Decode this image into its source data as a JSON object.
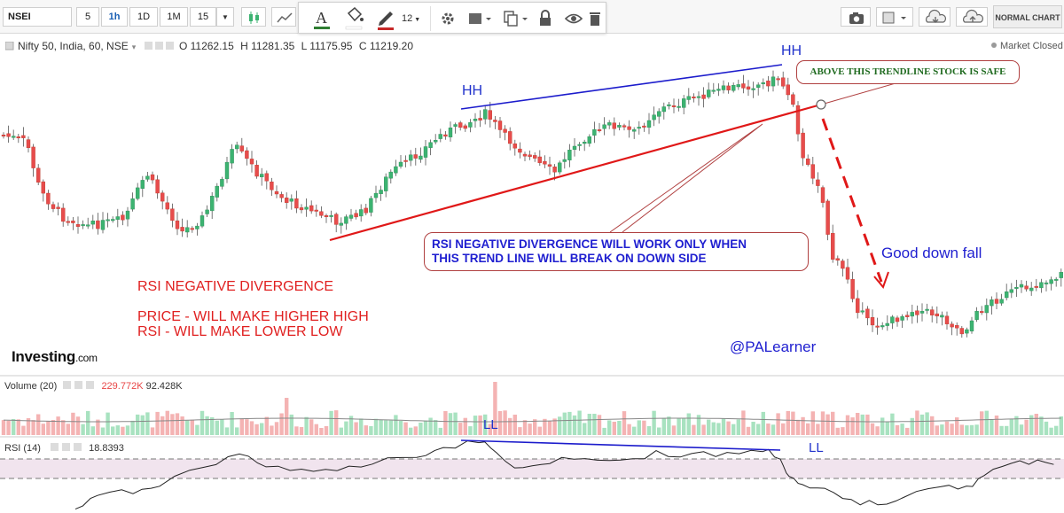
{
  "toolbar": {
    "symbol": "NSEI",
    "timeframes": [
      "5",
      "1h",
      "1D",
      "1M",
      "15"
    ],
    "active_timeframe": "1h",
    "font_size": "12",
    "normal_chart_label": "NORMAL CHART"
  },
  "legend": {
    "instrument": "Nifty 50, India, 60, NSE",
    "open": "O 11262.15",
    "high": "H 11281.35",
    "low": "L 11175.95",
    "close": "C 11219.20",
    "market_status": "Market Closed"
  },
  "annotations": {
    "hh_left": "HH",
    "hh_right": "HH",
    "ll_left": "LL",
    "ll_right": "LL",
    "safe_callout": "ABOVE THIS TRENDLINE STOCK IS SAFE",
    "rsi_callout_line1": "RSI NEGATIVE DIVERGENCE WILL WORK ONLY WHEN",
    "rsi_callout_line2": "THIS TREND LINE WILL BREAK ON DOWN SIDE",
    "good_down_fall": "Good down fall",
    "note_title": "RSI NEGATIVE DIVERGENCE",
    "note_price": "PRICE - WILL MAKE HIGHER HIGH",
    "note_rsi": "RSI - WILL MAKE LOWER LOW",
    "author": "@PALearner",
    "logo_text": "Investing",
    "logo_suffix": ".com"
  },
  "volume_pane": {
    "title": "Volume (20)",
    "value1": "229.772K",
    "value2": "92.428K"
  },
  "rsi_pane": {
    "title": "RSI (14)",
    "value": "18.8393"
  },
  "colors": {
    "up": "#3cb371",
    "down": "#e74c4c",
    "trendline_support": "#e01818",
    "trendline_highs": "#1c1ccc",
    "rsi_band": "#f1e4ee"
  },
  "chart_data": {
    "type": "candlestick",
    "instrument": "Nifty 50, India, 60, NSE",
    "ohlc_last": {
      "open": 11262.15,
      "high": 11281.35,
      "low": 11175.95,
      "close": 11219.2
    },
    "rsi_last": 18.8393,
    "volume_values": [
      229.772,
      92.428
    ],
    "volume_unit": "K",
    "rsi_period": 14,
    "volume_ma_period": 20
  }
}
